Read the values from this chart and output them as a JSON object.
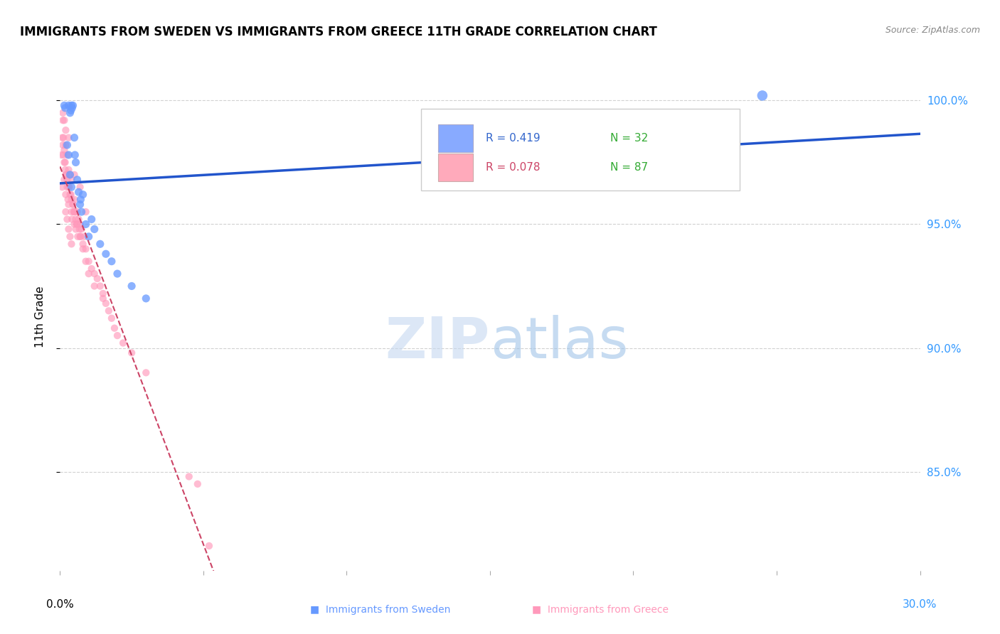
{
  "title": "IMMIGRANTS FROM SWEDEN VS IMMIGRANTS FROM GREECE 11TH GRADE CORRELATION CHART",
  "source": "Source: ZipAtlas.com",
  "ylabel": "11th Grade",
  "xlim": [
    0.0,
    30.0
  ],
  "ylim": [
    81.0,
    101.5
  ],
  "y_tick_positions": [
    85.0,
    90.0,
    95.0,
    100.0
  ],
  "y_tick_labels": [
    "85.0%",
    "90.0%",
    "95.0%",
    "100.0%"
  ],
  "sweden_color": "#6699ff",
  "greece_color": "#ff99bb",
  "sweden_line_color": "#2255cc",
  "greece_line_color": "#cc4466",
  "legend_sweden_color": "#88aaff",
  "legend_greece_color": "#ffaabb",
  "sweden_x": [
    0.15,
    0.18,
    0.3,
    0.35,
    0.38,
    0.4,
    0.42,
    0.45,
    0.5,
    0.52,
    0.55,
    0.6,
    0.65,
    0.7,
    0.72,
    0.75,
    0.8,
    0.9,
    1.0,
    1.1,
    1.2,
    1.4,
    1.6,
    1.8,
    2.0,
    2.5,
    3.0,
    0.25,
    0.3,
    0.35,
    0.4,
    24.5
  ],
  "sweden_y": [
    99.8,
    99.7,
    99.8,
    99.5,
    99.6,
    99.8,
    99.7,
    99.8,
    98.5,
    97.8,
    97.5,
    96.8,
    96.3,
    95.8,
    96.0,
    95.5,
    96.2,
    95.0,
    94.5,
    95.2,
    94.8,
    94.2,
    93.8,
    93.5,
    93.0,
    92.5,
    92.0,
    98.2,
    97.8,
    97.0,
    96.5,
    100.2
  ],
  "greece_x": [
    0.05,
    0.08,
    0.1,
    0.12,
    0.15,
    0.15,
    0.18,
    0.2,
    0.2,
    0.22,
    0.25,
    0.25,
    0.28,
    0.3,
    0.3,
    0.32,
    0.35,
    0.38,
    0.4,
    0.4,
    0.42,
    0.45,
    0.48,
    0.5,
    0.5,
    0.52,
    0.55,
    0.55,
    0.58,
    0.6,
    0.62,
    0.65,
    0.68,
    0.7,
    0.72,
    0.75,
    0.8,
    0.85,
    0.9,
    1.0,
    1.1,
    1.2,
    1.3,
    1.4,
    1.5,
    1.6,
    1.7,
    1.8,
    1.9,
    2.0,
    2.2,
    2.5,
    3.0,
    4.5,
    0.08,
    0.1,
    0.12,
    0.15,
    0.18,
    0.2,
    0.25,
    0.3,
    0.35,
    0.4,
    0.45,
    0.5,
    0.6,
    0.7,
    0.8,
    0.9,
    0.2,
    0.25,
    0.3,
    0.35,
    0.4,
    1.0,
    1.2,
    1.5,
    4.8,
    0.1,
    0.15,
    0.2,
    0.3,
    0.5,
    0.7,
    0.9,
    5.2
  ],
  "greece_y": [
    97.8,
    96.5,
    99.2,
    98.5,
    98.0,
    96.8,
    97.5,
    98.2,
    96.2,
    97.0,
    96.5,
    97.8,
    96.0,
    97.2,
    95.8,
    96.5,
    97.0,
    96.2,
    95.5,
    96.8,
    95.2,
    95.8,
    95.5,
    96.0,
    95.0,
    95.5,
    95.2,
    94.8,
    95.0,
    95.5,
    94.5,
    95.2,
    94.8,
    95.0,
    94.5,
    94.8,
    94.2,
    94.5,
    94.0,
    93.5,
    93.2,
    93.0,
    92.8,
    92.5,
    92.2,
    91.8,
    91.5,
    91.2,
    90.8,
    90.5,
    90.2,
    89.8,
    89.0,
    84.8,
    98.5,
    98.2,
    97.8,
    97.5,
    97.2,
    97.0,
    96.8,
    96.5,
    96.2,
    96.0,
    95.8,
    95.5,
    95.0,
    94.5,
    94.0,
    93.5,
    95.5,
    95.2,
    94.8,
    94.5,
    94.2,
    93.0,
    92.5,
    92.0,
    84.5,
    99.5,
    99.2,
    98.8,
    98.5,
    97.0,
    96.5,
    95.5,
    82.0
  ],
  "background_color": "#ffffff",
  "grid_color": "#cccccc"
}
